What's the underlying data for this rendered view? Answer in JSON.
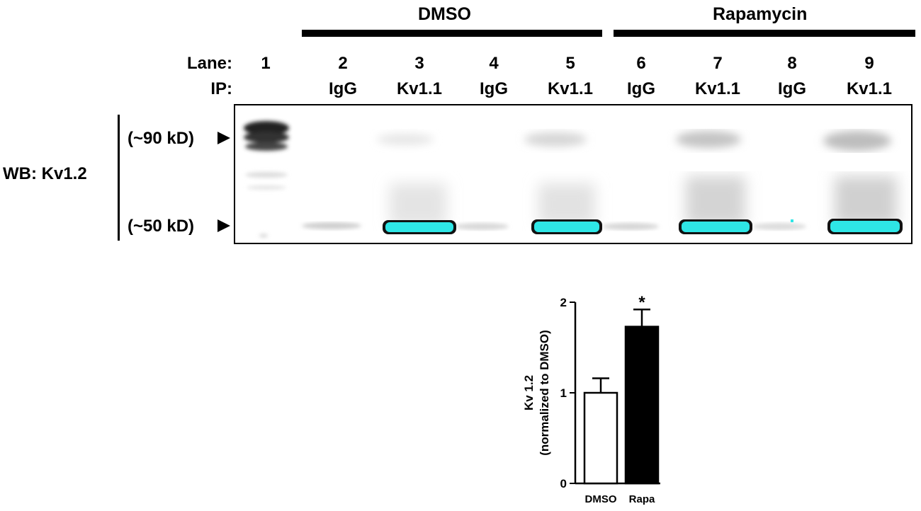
{
  "groups": {
    "dmso": "DMSO",
    "rapamycin": "Rapamycin"
  },
  "labels": {
    "lane": "Lane:",
    "ip": "IP:",
    "wb": "WB: Kv1.2",
    "marker_90": "(~90 kD)",
    "marker_50": "(~50 kD)"
  },
  "lanes": [
    "1",
    "2",
    "3",
    "4",
    "5",
    "6",
    "7",
    "8",
    "9"
  ],
  "ip": [
    "",
    "IgG",
    "Kv1.1",
    "IgG",
    "Kv1.1",
    "IgG",
    "Kv1.1",
    "IgG",
    "Kv1.1"
  ],
  "colors": {
    "saturated_band": "#2ee6e6",
    "bar_dmso": "#ffffff",
    "bar_rapa": "#000000"
  },
  "chart_data": {
    "type": "bar",
    "categories": [
      "DMSO",
      "Rapa"
    ],
    "values": [
      1.0,
      1.73
    ],
    "errors": [
      0.16,
      0.19
    ],
    "significance": [
      "",
      "*"
    ],
    "ylabel_line1": "Kv 1.2",
    "ylabel_line2": "(normalized to DMSO)",
    "ylim": [
      0,
      2
    ],
    "yticks": [
      0,
      1,
      2
    ],
    "legend": "none",
    "grid": false
  }
}
